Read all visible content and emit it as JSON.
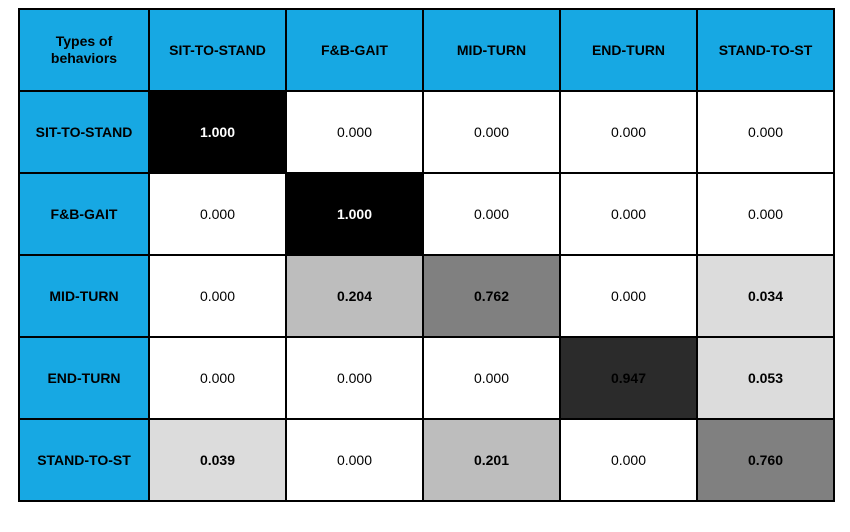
{
  "confusion_matrix": {
    "type": "heatmap",
    "corner_label_line1": "Types of",
    "corner_label_line2": "behaviors",
    "header_bg": "#17a8e3",
    "header_text_color": "#000000",
    "header_fontsize": 14,
    "header_fontweight": "bold",
    "border_color": "#000000",
    "border_width": 2,
    "cell_fontsize": 14,
    "bold_threshold": 0.02,
    "columns": [
      "SIT-TO-STAND",
      "F&B-GAIT",
      "MID-TURN",
      "END-TURN",
      "STAND-TO-ST"
    ],
    "rows": [
      "SIT-TO-STAND",
      "F&B-GAIT",
      "MID-TURN",
      "END-TURN",
      "STAND-TO-ST"
    ],
    "cells": [
      [
        {
          "value": "1.000",
          "bg": "#000000",
          "fg": "#ffffff",
          "bold": true
        },
        {
          "value": "0.000",
          "bg": "#ffffff",
          "fg": "#000000",
          "bold": false
        },
        {
          "value": "0.000",
          "bg": "#ffffff",
          "fg": "#000000",
          "bold": false
        },
        {
          "value": "0.000",
          "bg": "#ffffff",
          "fg": "#000000",
          "bold": false
        },
        {
          "value": "0.000",
          "bg": "#ffffff",
          "fg": "#000000",
          "bold": false
        }
      ],
      [
        {
          "value": "0.000",
          "bg": "#ffffff",
          "fg": "#000000",
          "bold": false
        },
        {
          "value": "1.000",
          "bg": "#000000",
          "fg": "#ffffff",
          "bold": true
        },
        {
          "value": "0.000",
          "bg": "#ffffff",
          "fg": "#000000",
          "bold": false
        },
        {
          "value": "0.000",
          "bg": "#ffffff",
          "fg": "#000000",
          "bold": false
        },
        {
          "value": "0.000",
          "bg": "#ffffff",
          "fg": "#000000",
          "bold": false
        }
      ],
      [
        {
          "value": "0.000",
          "bg": "#ffffff",
          "fg": "#000000",
          "bold": false
        },
        {
          "value": "0.204",
          "bg": "#bdbdbd",
          "fg": "#000000",
          "bold": true
        },
        {
          "value": "0.762",
          "bg": "#808080",
          "fg": "#000000",
          "bold": true
        },
        {
          "value": "0.000",
          "bg": "#ffffff",
          "fg": "#000000",
          "bold": false
        },
        {
          "value": "0.034",
          "bg": "#dcdcdc",
          "fg": "#000000",
          "bold": true
        }
      ],
      [
        {
          "value": "0.000",
          "bg": "#ffffff",
          "fg": "#000000",
          "bold": false
        },
        {
          "value": "0.000",
          "bg": "#ffffff",
          "fg": "#000000",
          "bold": false
        },
        {
          "value": "0.000",
          "bg": "#ffffff",
          "fg": "#000000",
          "bold": false
        },
        {
          "value": "0.947",
          "bg": "#2b2b2b",
          "fg": "#000000",
          "bold": true
        },
        {
          "value": "0.053",
          "bg": "#dcdcdc",
          "fg": "#000000",
          "bold": true
        }
      ],
      [
        {
          "value": "0.039",
          "bg": "#dcdcdc",
          "fg": "#000000",
          "bold": true
        },
        {
          "value": "0.000",
          "bg": "#ffffff",
          "fg": "#000000",
          "bold": false
        },
        {
          "value": "0.201",
          "bg": "#bdbdbd",
          "fg": "#000000",
          "bold": true
        },
        {
          "value": "0.000",
          "bg": "#ffffff",
          "fg": "#000000",
          "bold": false
        },
        {
          "value": "0.760",
          "bg": "#808080",
          "fg": "#000000",
          "bold": true
        }
      ]
    ]
  }
}
